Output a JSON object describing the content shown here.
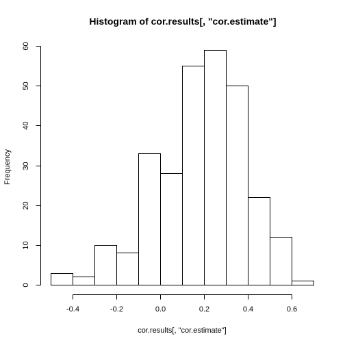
{
  "chart_data": {
    "type": "bar",
    "title": "Histogram of cor.results[, \"cor.estimate\"]",
    "xlabel": "cor.results[, \"cor.estimate\"]",
    "ylabel": "Frequency",
    "bins": [
      {
        "from": -0.5,
        "to": -0.4,
        "count": 3
      },
      {
        "from": -0.4,
        "to": -0.3,
        "count": 2
      },
      {
        "from": -0.3,
        "to": -0.2,
        "count": 10
      },
      {
        "from": -0.2,
        "to": -0.1,
        "count": 8
      },
      {
        "from": -0.1,
        "to": 0.0,
        "count": 33
      },
      {
        "from": 0.0,
        "to": 0.1,
        "count": 28
      },
      {
        "from": 0.1,
        "to": 0.2,
        "count": 55
      },
      {
        "from": 0.2,
        "to": 0.3,
        "count": 59
      },
      {
        "from": 0.3,
        "to": 0.4,
        "count": 50
      },
      {
        "from": 0.4,
        "to": 0.5,
        "count": 22
      },
      {
        "from": 0.5,
        "to": 0.6,
        "count": 12
      },
      {
        "from": 0.6,
        "to": 0.7,
        "count": 1
      }
    ],
    "xlim": [
      -0.5,
      0.7
    ],
    "ylim": [
      0,
      60
    ],
    "x_ticks": [
      {
        "value": -0.4,
        "label": "-0.4"
      },
      {
        "value": -0.2,
        "label": "-0.2"
      },
      {
        "value": 0.0,
        "label": "0.0"
      },
      {
        "value": 0.2,
        "label": "0.2"
      },
      {
        "value": 0.4,
        "label": "0.4"
      },
      {
        "value": 0.6,
        "label": "0.6"
      }
    ],
    "y_ticks": [
      {
        "value": 0,
        "label": "0"
      },
      {
        "value": 10,
        "label": "10"
      },
      {
        "value": 20,
        "label": "20"
      },
      {
        "value": 30,
        "label": "30"
      },
      {
        "value": 40,
        "label": "40"
      },
      {
        "value": 50,
        "label": "50"
      },
      {
        "value": 60,
        "label": "60"
      }
    ],
    "grid": false,
    "bar_fill": "#ffffff",
    "bar_stroke": "#000000"
  }
}
